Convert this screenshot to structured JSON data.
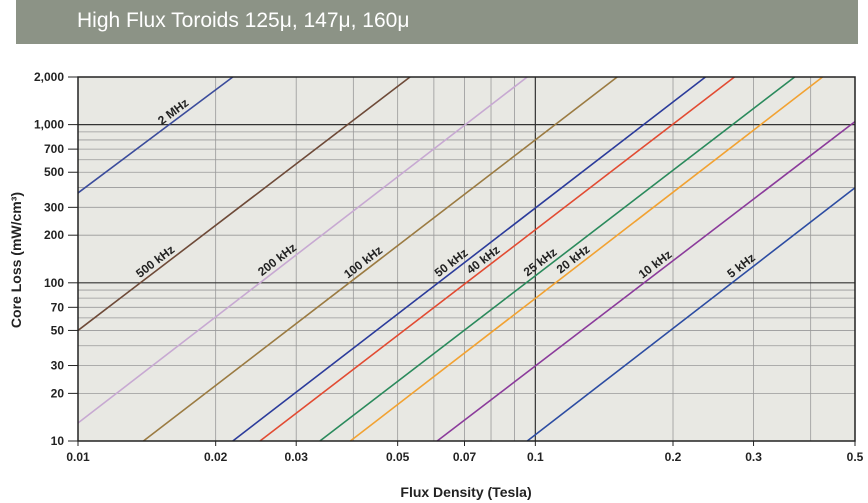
{
  "header": {
    "title": "High Flux Toroids 125μ, 147μ, 160μ"
  },
  "chart_data": {
    "type": "line",
    "title": "High Flux Toroids 125μ, 147μ, 160μ",
    "xlabel": "Flux Density (Tesla)",
    "ylabel": "Core Loss (mW/cm³)",
    "xscale": "log",
    "yscale": "log",
    "xlim": [
      0.01,
      0.5
    ],
    "ylim": [
      10,
      2000
    ],
    "grid": true,
    "x_grid": [
      0.01,
      0.02,
      0.03,
      0.04,
      0.05,
      0.06,
      0.07,
      0.08,
      0.09,
      0.1,
      0.2,
      0.3,
      0.4,
      0.5
    ],
    "y_grid": [
      10,
      20,
      30,
      40,
      50,
      60,
      70,
      80,
      90,
      100,
      200,
      300,
      400,
      500,
      600,
      700,
      800,
      900,
      1000,
      2000
    ],
    "x_ticks": [
      {
        "v": 0.01,
        "label": "0.01"
      },
      {
        "v": 0.02,
        "label": "0.02"
      },
      {
        "v": 0.03,
        "label": "0.03"
      },
      {
        "v": 0.05,
        "label": "0.05"
      },
      {
        "v": 0.07,
        "label": "0.07"
      },
      {
        "v": 0.1,
        "label": "0.1"
      },
      {
        "v": 0.2,
        "label": "0.2"
      },
      {
        "v": 0.3,
        "label": "0.3"
      },
      {
        "v": 0.5,
        "label": "0.5"
      }
    ],
    "y_ticks": [
      {
        "v": 10,
        "label": "10"
      },
      {
        "v": 20,
        "label": "20"
      },
      {
        "v": 30,
        "label": "30"
      },
      {
        "v": 50,
        "label": "50"
      },
      {
        "v": 70,
        "label": "70"
      },
      {
        "v": 100,
        "label": "100"
      },
      {
        "v": 200,
        "label": "200"
      },
      {
        "v": 300,
        "label": "300"
      },
      {
        "v": 500,
        "label": "500"
      },
      {
        "v": 700,
        "label": "700"
      },
      {
        "v": 1000,
        "label": "1,000"
      },
      {
        "v": 2000,
        "label": "2,000"
      }
    ],
    "series": [
      {
        "name": "2 MHz",
        "color": "#3b4c9c",
        "points": [
          [
            0.01,
            370
          ],
          [
            0.0218,
            2000
          ]
        ]
      },
      {
        "name": "500 kHz",
        "color": "#6e4a38",
        "points": [
          [
            0.01,
            50
          ],
          [
            0.0532,
            2000
          ]
        ]
      },
      {
        "name": "200 kHz",
        "color": "#c7a9d2",
        "points": [
          [
            0.01,
            13
          ],
          [
            0.096,
            2000
          ]
        ]
      },
      {
        "name": "100 kHz",
        "color": "#9b7b42",
        "points": [
          [
            0.0139,
            10
          ],
          [
            0.151,
            2000
          ]
        ]
      },
      {
        "name": "50 kHz",
        "color": "#2b3b9b",
        "points": [
          [
            0.0218,
            10
          ],
          [
            0.2355,
            2000
          ]
        ]
      },
      {
        "name": "40 kHz",
        "color": "#e24b32",
        "points": [
          [
            0.025,
            10
          ],
          [
            0.2725,
            2000
          ]
        ]
      },
      {
        "name": "25 kHz",
        "color": "#2a8a5c",
        "points": [
          [
            0.0338,
            10
          ],
          [
            0.369,
            2000
          ]
        ]
      },
      {
        "name": "20 kHz",
        "color": "#f2a232",
        "points": [
          [
            0.0394,
            10
          ],
          [
            0.4246,
            2000
          ]
        ]
      },
      {
        "name": "10 kHz",
        "color": "#8b3b9b",
        "points": [
          [
            0.061,
            10
          ],
          [
            0.5,
            1045
          ]
        ]
      },
      {
        "name": "5 kHz",
        "color": "#2c4ca2",
        "points": [
          [
            0.096,
            10
          ],
          [
            0.5,
            399
          ]
        ]
      }
    ]
  }
}
